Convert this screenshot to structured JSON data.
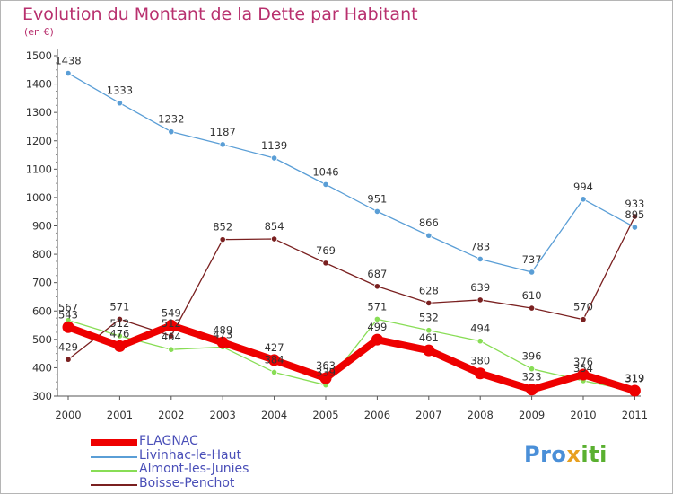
{
  "title": "Evolution du Montant de la Dette par Habitant",
  "unit": "(en €)",
  "logo": {
    "p1": "Pro",
    "p2": "x",
    "p3": "iti"
  },
  "chart_data": {
    "type": "line",
    "categories": [
      "2000",
      "2001",
      "2002",
      "2003",
      "2004",
      "2005",
      "2006",
      "2007",
      "2008",
      "2009",
      "2010",
      "2011"
    ],
    "ylim": [
      300,
      1500
    ],
    "yticks": [
      300,
      400,
      500,
      600,
      700,
      800,
      900,
      1000,
      1100,
      1200,
      1300,
      1400,
      1500
    ],
    "grid": false,
    "legend_position": "bottom-left",
    "series": [
      {
        "name": "FLAGNAC",
        "color": "#ee0000",
        "values": [
          543,
          476,
          549,
          489,
          427,
          363,
          499,
          461,
          380,
          323,
          376,
          319
        ]
      },
      {
        "name": "Livinhac-le-Haut",
        "color": "#5a9ed6",
        "values": [
          1438,
          1333,
          1232,
          1187,
          1139,
          1046,
          951,
          866,
          783,
          737,
          994,
          895
        ]
      },
      {
        "name": "Almont-les-Junies",
        "color": "#88dd55",
        "values": [
          567,
          512,
          464,
          473,
          384,
          339,
          571,
          532,
          494,
          396,
          354,
          317
        ]
      },
      {
        "name": "Boisse-Penchot",
        "color": "#7a2020",
        "values": [
          429,
          571,
          512,
          852,
          854,
          769,
          687,
          628,
          639,
          610,
          570,
          933
        ]
      }
    ]
  }
}
